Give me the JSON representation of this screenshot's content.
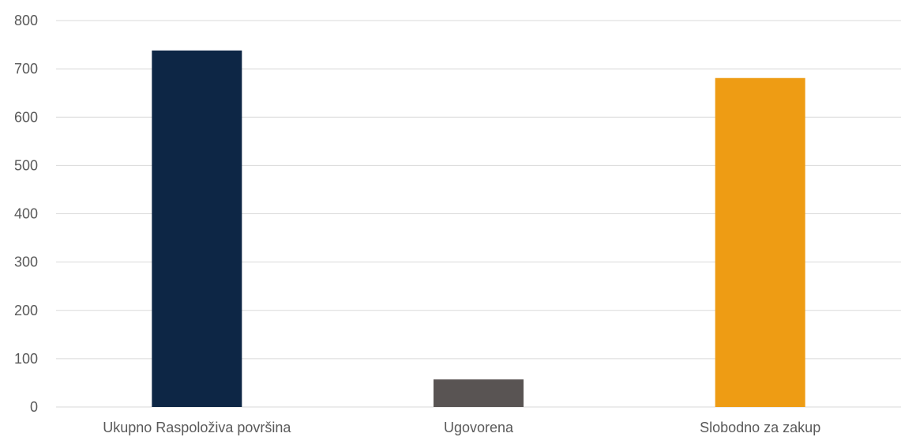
{
  "chart_data": {
    "type": "bar",
    "title": "",
    "xlabel": "",
    "ylabel": "",
    "categories": [
      "Ukupno Raspoloživa površina",
      "Ugovorena",
      "Slobodno za zakup"
    ],
    "values": [
      738,
      57,
      681
    ],
    "colors": [
      "#0d2645",
      "#595453",
      "#ee9c14"
    ],
    "ylim": [
      0,
      800
    ],
    "yticks": [
      "0",
      "100",
      "200",
      "300",
      "400",
      "500",
      "600",
      "700",
      "800"
    ],
    "grid": true,
    "legend": "none"
  }
}
